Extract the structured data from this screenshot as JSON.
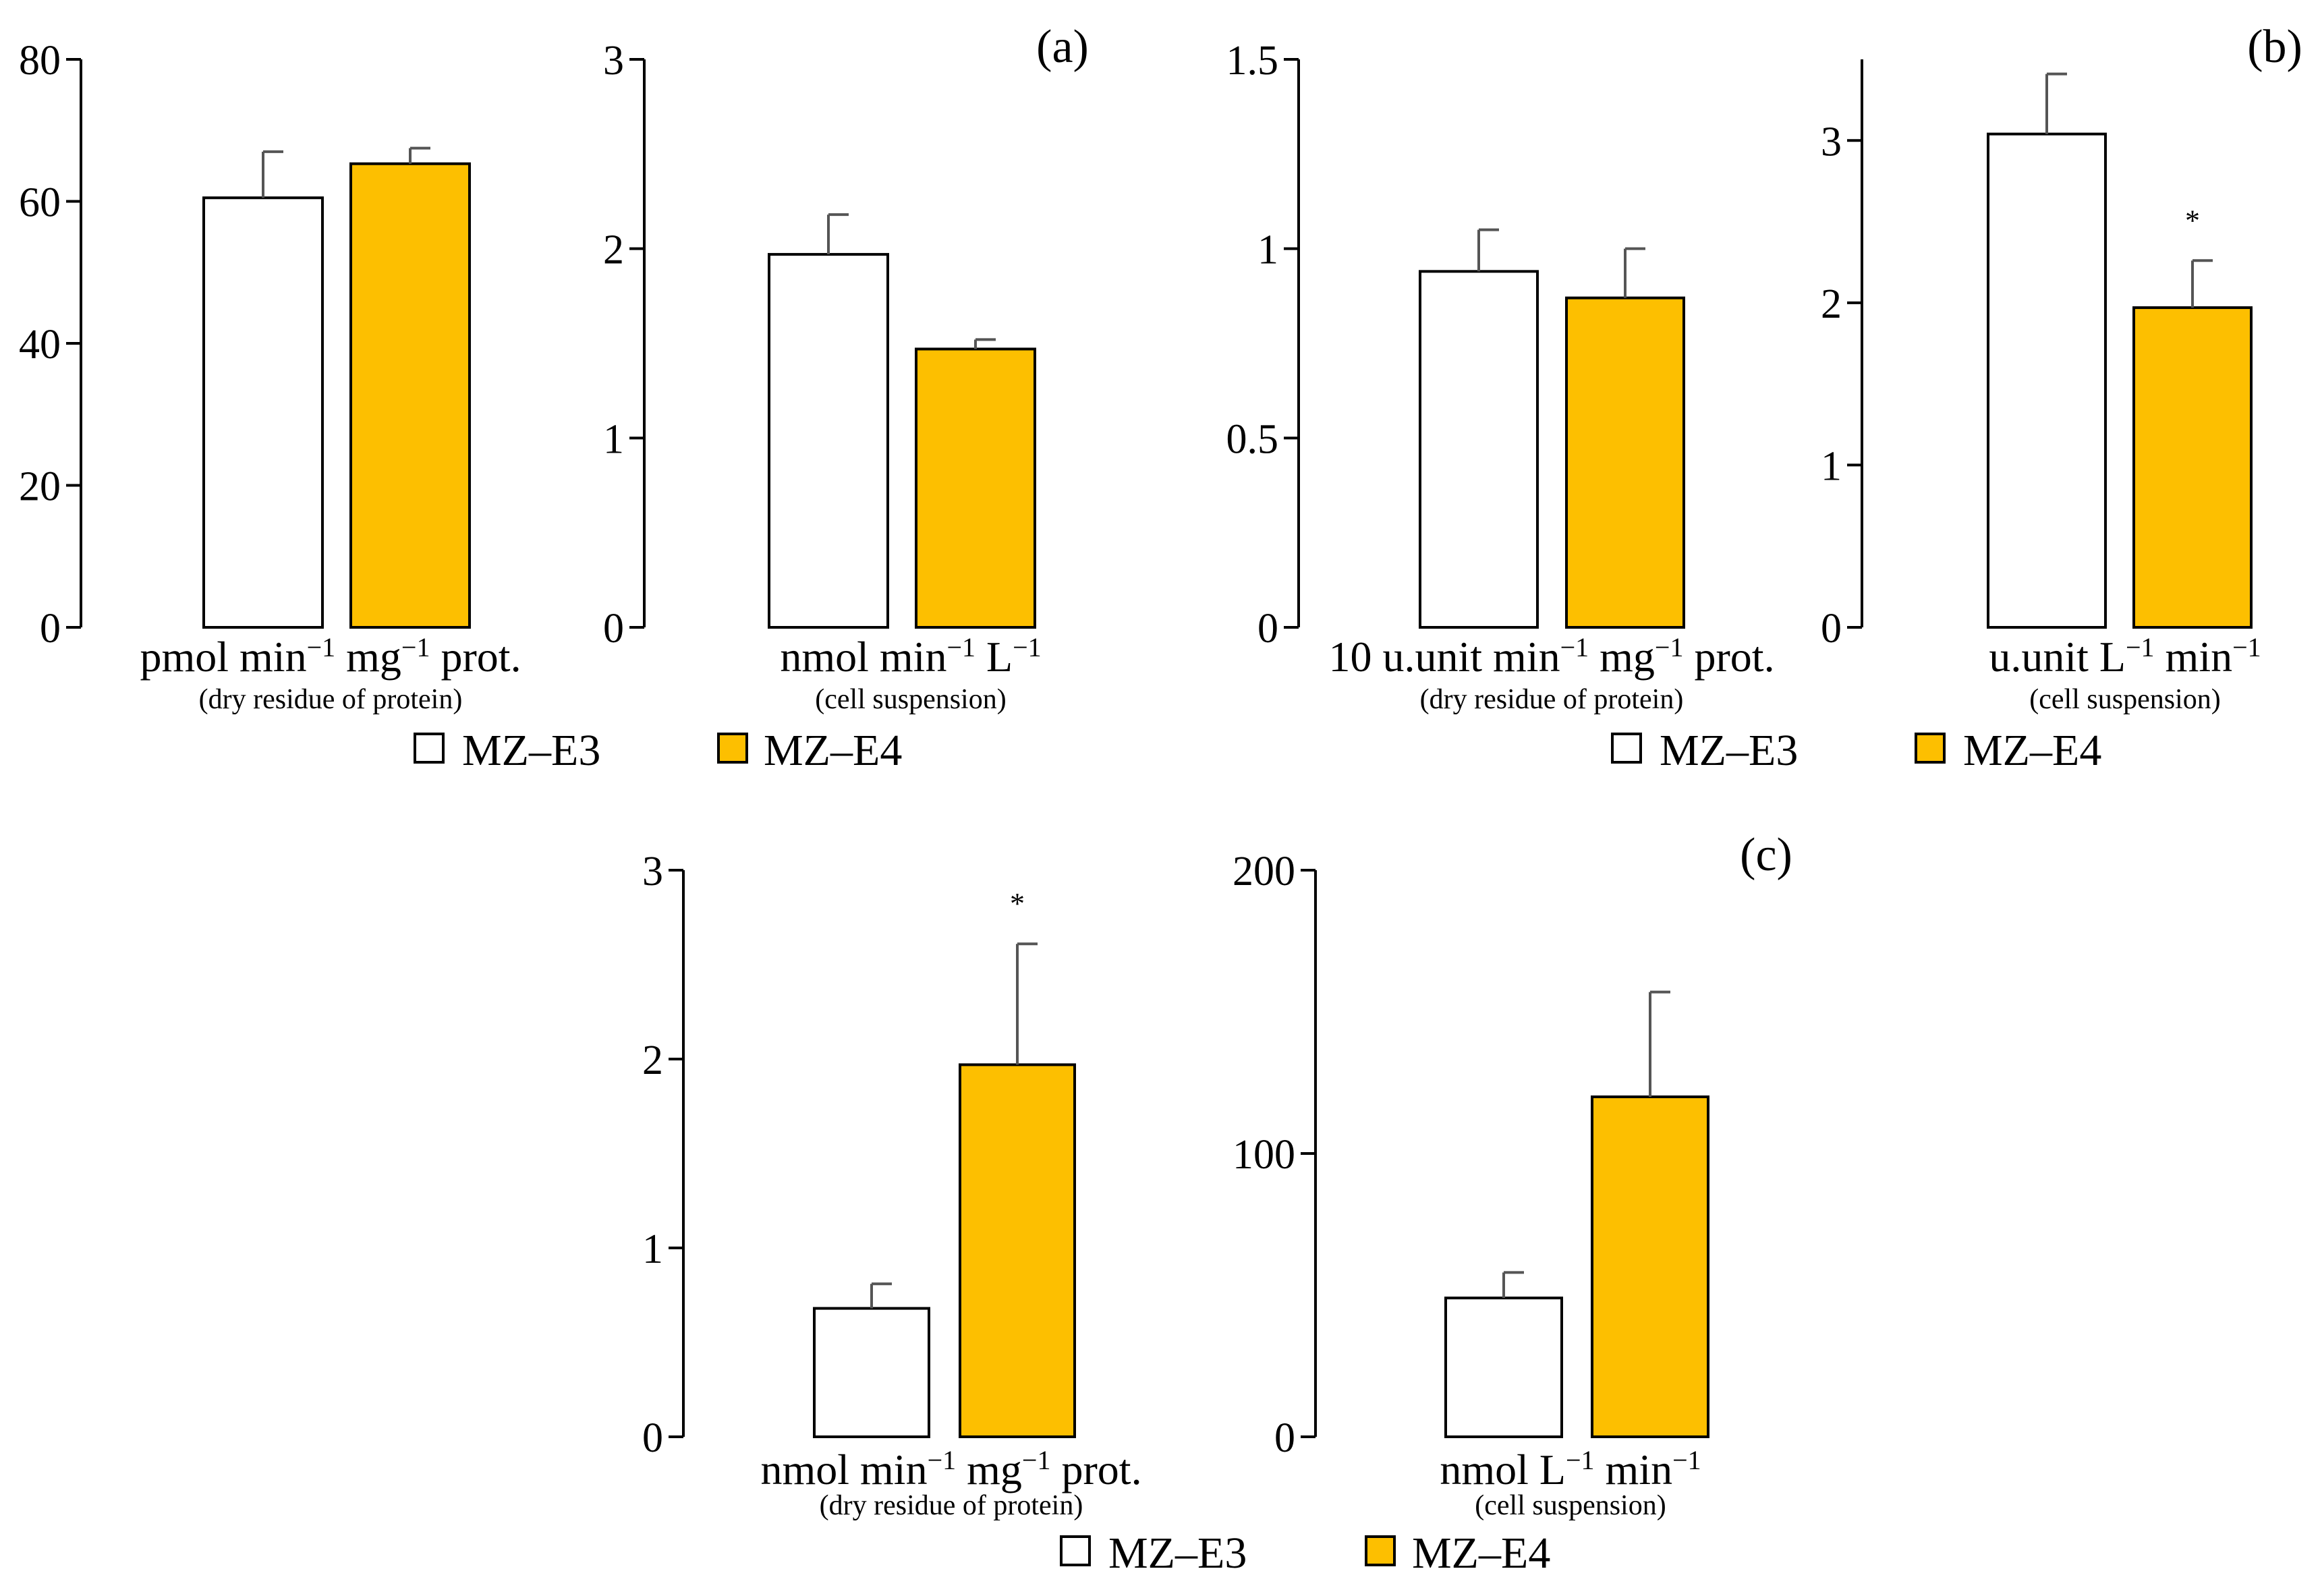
{
  "colors": {
    "mz_e3": "#ffffff",
    "mz_e4": "#fdbf00",
    "bar_edge": "#000000",
    "axis": "#000000",
    "error_bar": "#555555"
  },
  "legend_items": [
    {
      "label": "MZ–E3",
      "color": "#ffffff"
    },
    {
      "label": "MZ–E4",
      "color": "#fdbf00"
    }
  ],
  "panels": [
    {
      "label": "(a)",
      "legend": [
        "MZ–E3",
        "MZ–E4"
      ]
    },
    {
      "label": "(b)",
      "legend": [
        "MZ–E3",
        "MZ–E4"
      ]
    },
    {
      "label": "(c)",
      "legend": [
        "MZ–E3",
        "MZ–E4"
      ]
    }
  ],
  "chart_data": [
    {
      "type": "bar",
      "panel": "(a)",
      "categories": [
        "MZ–E3",
        "MZ–E4"
      ],
      "values": [
        60.5,
        65.3
      ],
      "errors": [
        6.5,
        2.2
      ],
      "significance": [
        "",
        ""
      ],
      "ylim": [
        0,
        80
      ],
      "yticks": [
        0,
        20,
        40,
        60,
        80
      ],
      "ytick_labels": [
        "0",
        "20",
        "40",
        "60",
        "80"
      ],
      "xlabel_parts": [
        "pmol min",
        "−1",
        " mg",
        "−1",
        " prot."
      ],
      "xsublabel": "(dry residue of protein)"
    },
    {
      "type": "bar",
      "panel": "(a)",
      "categories": [
        "MZ–E3",
        "MZ–E4"
      ],
      "values": [
        1.97,
        1.47
      ],
      "errors": [
        0.21,
        0.05
      ],
      "significance": [
        "",
        ""
      ],
      "ylim": [
        0,
        3
      ],
      "yticks": [
        0,
        1,
        2,
        3
      ],
      "ytick_labels": [
        "0",
        "1",
        "2",
        "3"
      ],
      "xlabel_parts": [
        "nmol min",
        "−1",
        " L",
        "−1",
        ""
      ],
      "xsublabel": "(cell suspension)"
    },
    {
      "type": "bar",
      "panel": "(b)",
      "categories": [
        "MZ–E3",
        "MZ–E4"
      ],
      "values": [
        0.94,
        0.87
      ],
      "errors": [
        0.11,
        0.13
      ],
      "significance": [
        "",
        ""
      ],
      "ylim": [
        0,
        1.5
      ],
      "yticks": [
        0,
        0.5,
        1,
        1.5
      ],
      "ytick_labels": [
        "0",
        "0.5",
        "1",
        "1.5"
      ],
      "xlabel_parts": [
        "10 u.unit min",
        "−1",
        " mg",
        "−1",
        " prot."
      ],
      "xsublabel": "(dry residue of protein)"
    },
    {
      "type": "bar",
      "panel": "(b)",
      "categories": [
        "MZ–E3",
        "MZ–E4"
      ],
      "values": [
        3.04,
        1.97
      ],
      "errors": [
        0.37,
        0.29
      ],
      "significance": [
        "",
        "*"
      ],
      "ylim": [
        0,
        3.5
      ],
      "yticks": [
        0,
        1,
        2,
        3
      ],
      "ytick_labels": [
        "0",
        "1",
        "2",
        "3"
      ],
      "xlabel_parts": [
        "u.unit L",
        "−1",
        " min",
        "−1",
        ""
      ],
      "xsublabel": "(cell suspension)"
    },
    {
      "type": "bar",
      "panel": "(c)",
      "categories": [
        "MZ–E3",
        "MZ–E4"
      ],
      "values": [
        0.68,
        1.97
      ],
      "errors": [
        0.13,
        0.64
      ],
      "significance": [
        "",
        "*"
      ],
      "ylim": [
        0,
        3
      ],
      "yticks": [
        0,
        1,
        2,
        3
      ],
      "ytick_labels": [
        "0",
        "1",
        "2",
        "3"
      ],
      "xlabel_parts": [
        "nmol min",
        "−1",
        " mg",
        "−1",
        " prot."
      ],
      "xsublabel": "(dry residue of protein)"
    },
    {
      "type": "bar",
      "panel": "(c)",
      "categories": [
        "MZ–E3",
        "MZ–E4"
      ],
      "values": [
        49,
        120
      ],
      "errors": [
        9,
        37
      ],
      "significance": [
        "",
        ""
      ],
      "ylim": [
        0,
        200
      ],
      "yticks": [
        0,
        100,
        200
      ],
      "ytick_labels": [
        "0",
        "100",
        "200"
      ],
      "xlabel_parts": [
        "nmol L",
        "−1",
        " min",
        "−1",
        ""
      ],
      "xsublabel": "(cell suspension)"
    }
  ]
}
